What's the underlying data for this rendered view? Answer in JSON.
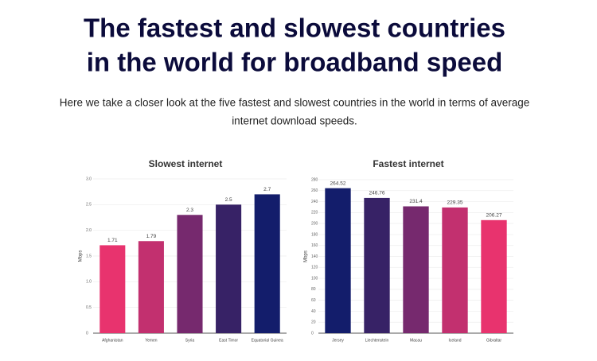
{
  "header": {
    "title_lines": [
      "The fastest and slowest countries",
      "in the world for broadband speed"
    ],
    "subtitle_lines": [
      "Here we take a closer look at the five fastest and slowest countries in the world in terms of average",
      "internet download speeds."
    ]
  },
  "chart_data": [
    {
      "type": "bar",
      "title": "Slowest internet",
      "y_label": "Mbps",
      "categories": [
        "Afghanistan",
        "Yemen",
        "Syria",
        "East Timor",
        "Equatorial Guinea"
      ],
      "values": [
        1.71,
        1.79,
        2.3,
        2.5,
        2.7
      ],
      "colors": [
        "#e8336e",
        "#c2306f",
        "#76296e",
        "#372266",
        "#131d6b"
      ],
      "ylim": [
        0,
        3
      ],
      "yticks": [
        0,
        0.5,
        {
          "value": 1,
          "label": "1.0"
        },
        1.5,
        {
          "value": 2,
          "label": "2.0"
        },
        2.5,
        {
          "value": 3,
          "label": "3.0"
        }
      ],
      "grid": true
    },
    {
      "type": "bar",
      "title": "Fastest internet",
      "y_label": "Mbps",
      "categories": [
        "Jersey",
        "Liechtenstein",
        "Macau",
        "Iceland",
        "Gibraltar"
      ],
      "values": [
        264.52,
        246.76,
        231.4,
        229.35,
        206.27
      ],
      "colors": [
        "#131d6b",
        "#372266",
        "#76296e",
        "#c2306f",
        "#e8336e"
      ],
      "ylim": [
        0,
        280
      ],
      "yticks": [
        0,
        20,
        40,
        60,
        80,
        100,
        120,
        140,
        160,
        180,
        200,
        220,
        240,
        260,
        280
      ],
      "grid": true
    }
  ]
}
